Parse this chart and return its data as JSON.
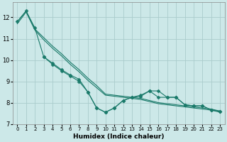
{
  "xlabel": "Humidex (Indice chaleur)",
  "bg_color": "#cce8e8",
  "grid_color": "#aacccc",
  "line_color": "#1a7a6a",
  "marker_color": "#1a7a6a",
  "xlim": [
    -0.5,
    23.5
  ],
  "ylim": [
    7.0,
    12.7
  ],
  "yticks": [
    7,
    8,
    9,
    10,
    11,
    12
  ],
  "xticks": [
    0,
    1,
    2,
    3,
    4,
    5,
    6,
    7,
    8,
    9,
    10,
    11,
    12,
    13,
    14,
    15,
    16,
    17,
    18,
    19,
    20,
    21,
    22,
    23
  ],
  "series": [
    {
      "x": [
        0,
        1,
        2,
        3,
        4,
        5,
        6,
        7,
        8,
        9,
        10,
        11,
        12,
        13,
        14,
        15,
        16,
        17,
        18,
        19,
        20,
        21,
        22,
        23
      ],
      "y": [
        11.8,
        12.3,
        11.5,
        10.15,
        9.85,
        9.55,
        9.3,
        9.1,
        8.5,
        7.75,
        7.55,
        7.75,
        8.1,
        8.25,
        8.3,
        8.55,
        8.55,
        8.25,
        8.25,
        7.9,
        7.85,
        7.85,
        7.65,
        7.6
      ],
      "marker": "D",
      "markersize": 2.5
    },
    {
      "x": [
        0,
        1,
        2,
        3,
        4,
        5,
        6,
        7,
        8,
        9,
        10,
        11,
        12,
        13,
        14,
        15,
        16,
        17,
        18,
        19,
        20,
        21,
        22,
        23
      ],
      "y": [
        11.8,
        12.3,
        11.45,
        11.05,
        10.65,
        10.3,
        9.9,
        9.55,
        9.15,
        8.8,
        8.4,
        8.35,
        8.3,
        8.25,
        8.2,
        8.1,
        8.0,
        7.95,
        7.9,
        7.85,
        7.8,
        7.75,
        7.7,
        7.6
      ],
      "marker": null,
      "markersize": 0
    },
    {
      "x": [
        0,
        1,
        2,
        3,
        4,
        5,
        6,
        7,
        8,
        9,
        10,
        11,
        12,
        13,
        14,
        15,
        16,
        17,
        18,
        19,
        20,
        21,
        22,
        23
      ],
      "y": [
        11.7,
        12.25,
        11.4,
        10.95,
        10.55,
        10.2,
        9.8,
        9.45,
        9.05,
        8.7,
        8.35,
        8.3,
        8.25,
        8.2,
        8.15,
        8.05,
        7.95,
        7.9,
        7.85,
        7.8,
        7.75,
        7.7,
        7.65,
        7.55
      ],
      "marker": null,
      "markersize": 0
    },
    {
      "x": [
        3,
        4,
        5,
        6,
        7,
        8,
        9,
        10,
        11,
        12,
        13,
        14,
        15,
        16,
        17,
        18,
        19,
        20,
        21,
        22,
        23
      ],
      "y": [
        10.15,
        9.8,
        9.5,
        9.25,
        9.0,
        8.5,
        7.75,
        7.55,
        7.75,
        8.1,
        8.25,
        8.35,
        8.55,
        8.25,
        8.25,
        8.25,
        7.9,
        7.85,
        7.85,
        7.65,
        7.6
      ],
      "marker": "D",
      "markersize": 2.5
    }
  ]
}
